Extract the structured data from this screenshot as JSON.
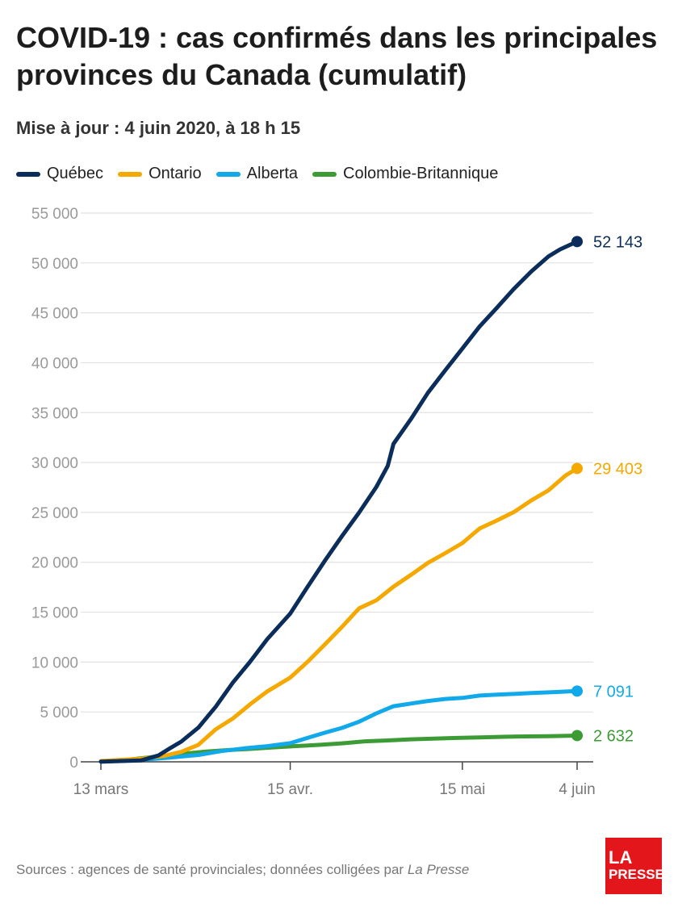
{
  "header": {
    "title": "COVID-19 : cas confirmés dans les principales provinces du Canada (cumulatif)",
    "subtitle": "Mise à jour : 4 juin 2020, à 18 h 15"
  },
  "footer": {
    "source_prefix": "Sources : agences de santé provinciales; données colligées par ",
    "source_publication": "La Presse"
  },
  "logo": {
    "line1": "LA",
    "line2": "PRESSE",
    "color": "#e3161b"
  },
  "chart_data": {
    "type": "line",
    "title": "COVID-19 : cas confirmés dans les principales provinces du Canada (cumulatif)",
    "subtitle": "Mise à jour : 4 juin 2020, à 18 h 15",
    "xlabel": "",
    "ylabel": "",
    "x_axis": {
      "type": "date",
      "range": [
        "2020-03-13",
        "2020-06-04"
      ],
      "ticks": [
        {
          "date": "2020-03-13",
          "label": "13 mars"
        },
        {
          "date": "2020-04-15",
          "label": "15 avr."
        },
        {
          "date": "2020-05-15",
          "label": "15 mai"
        },
        {
          "date": "2020-06-04",
          "label": "4 juin"
        }
      ]
    },
    "y_axis": {
      "range": [
        0,
        55000
      ],
      "ticks": [
        {
          "value": 0,
          "label": "0"
        },
        {
          "value": 5000,
          "label": "5 000"
        },
        {
          "value": 10000,
          "label": "10 000"
        },
        {
          "value": 15000,
          "label": "15 000"
        },
        {
          "value": 20000,
          "label": "20 000"
        },
        {
          "value": 25000,
          "label": "25 000"
        },
        {
          "value": 30000,
          "label": "30 000"
        },
        {
          "value": 35000,
          "label": "35 000"
        },
        {
          "value": 40000,
          "label": "40 000"
        },
        {
          "value": 45000,
          "label": "45 000"
        },
        {
          "value": 50000,
          "label": "50 000"
        },
        {
          "value": 55000,
          "label": "55 000"
        }
      ]
    },
    "grid": "horizontal",
    "legend": "top",
    "series": [
      {
        "name": "Québec",
        "color": "#0b2d5b",
        "end_label": "52 143",
        "points": [
          [
            "2020-03-13",
            17
          ],
          [
            "2020-03-20",
            139
          ],
          [
            "2020-03-23",
            628
          ],
          [
            "2020-03-25",
            1339
          ],
          [
            "2020-03-27",
            2021
          ],
          [
            "2020-03-30",
            3430
          ],
          [
            "2020-04-02",
            5518
          ],
          [
            "2020-04-05",
            7944
          ],
          [
            "2020-04-08",
            10031
          ],
          [
            "2020-04-11",
            12292
          ],
          [
            "2020-04-15",
            14860
          ],
          [
            "2020-04-18",
            17521
          ],
          [
            "2020-04-21",
            20126
          ],
          [
            "2020-04-24",
            22616
          ],
          [
            "2020-04-27",
            24982
          ],
          [
            "2020-04-30",
            27538
          ],
          [
            "2020-05-02",
            29656
          ],
          [
            "2020-05-03",
            31865
          ],
          [
            "2020-05-06",
            34327
          ],
          [
            "2020-05-09",
            36986
          ],
          [
            "2020-05-12",
            39225
          ],
          [
            "2020-05-15",
            41420
          ],
          [
            "2020-05-18",
            43627
          ],
          [
            "2020-05-21",
            45495
          ],
          [
            "2020-05-24",
            47411
          ],
          [
            "2020-05-27",
            49139
          ],
          [
            "2020-05-30",
            50651
          ],
          [
            "2020-06-01",
            51354
          ],
          [
            "2020-06-04",
            52143
          ]
        ]
      },
      {
        "name": "Ontario",
        "color": "#f5a800",
        "end_label": "29 403",
        "points": [
          [
            "2020-03-13",
            79
          ],
          [
            "2020-03-20",
            308
          ],
          [
            "2020-03-24",
            588
          ],
          [
            "2020-03-27",
            993
          ],
          [
            "2020-03-30",
            1706
          ],
          [
            "2020-04-02",
            3255
          ],
          [
            "2020-04-05",
            4347
          ],
          [
            "2020-04-08",
            5759
          ],
          [
            "2020-04-11",
            7049
          ],
          [
            "2020-04-15",
            8447
          ],
          [
            "2020-04-18",
            10010
          ],
          [
            "2020-04-21",
            11735
          ],
          [
            "2020-04-24",
            13519
          ],
          [
            "2020-04-27",
            15381
          ],
          [
            "2020-04-30",
            16187
          ],
          [
            "2020-05-03",
            17553
          ],
          [
            "2020-05-06",
            18722
          ],
          [
            "2020-05-09",
            19944
          ],
          [
            "2020-05-12",
            20907
          ],
          [
            "2020-05-15",
            21922
          ],
          [
            "2020-05-18",
            23384
          ],
          [
            "2020-05-21",
            24187
          ],
          [
            "2020-05-24",
            25040
          ],
          [
            "2020-05-27",
            26191
          ],
          [
            "2020-05-30",
            27210
          ],
          [
            "2020-06-02",
            28709
          ],
          [
            "2020-06-04",
            29403
          ]
        ]
      },
      {
        "name": "Alberta",
        "color": "#12a9ea",
        "end_label": "7 091",
        "points": [
          [
            "2020-03-13",
            23
          ],
          [
            "2020-03-20",
            195
          ],
          [
            "2020-03-25",
            419
          ],
          [
            "2020-03-30",
            690
          ],
          [
            "2020-04-03",
            1075
          ],
          [
            "2020-04-07",
            1348
          ],
          [
            "2020-04-11",
            1566
          ],
          [
            "2020-04-15",
            1870
          ],
          [
            "2020-04-18",
            2397
          ],
          [
            "2020-04-21",
            2908
          ],
          [
            "2020-04-24",
            3401
          ],
          [
            "2020-04-27",
            4017
          ],
          [
            "2020-04-30",
            4850
          ],
          [
            "2020-05-03",
            5573
          ],
          [
            "2020-05-06",
            5836
          ],
          [
            "2020-05-09",
            6098
          ],
          [
            "2020-05-12",
            6300
          ],
          [
            "2020-05-15",
            6407
          ],
          [
            "2020-05-18",
            6644
          ],
          [
            "2020-05-21",
            6735
          ],
          [
            "2020-05-24",
            6800
          ],
          [
            "2020-05-27",
            6900
          ],
          [
            "2020-05-31",
            6992
          ],
          [
            "2020-06-04",
            7091
          ]
        ]
      },
      {
        "name": "Colombie-Britannique",
        "color": "#3d9b35",
        "end_label": "2 632",
        "points": [
          [
            "2020-03-13",
            64
          ],
          [
            "2020-03-18",
            231
          ],
          [
            "2020-03-21",
            424
          ],
          [
            "2020-03-24",
            617
          ],
          [
            "2020-03-27",
            792
          ],
          [
            "2020-03-31",
            1013
          ],
          [
            "2020-04-04",
            1174
          ],
          [
            "2020-04-08",
            1291
          ],
          [
            "2020-04-12",
            1445
          ],
          [
            "2020-04-16",
            1575
          ],
          [
            "2020-04-20",
            1699
          ],
          [
            "2020-04-24",
            1853
          ],
          [
            "2020-04-28",
            2053
          ],
          [
            "2020-05-02",
            2145
          ],
          [
            "2020-05-06",
            2255
          ],
          [
            "2020-05-10",
            2330
          ],
          [
            "2020-05-14",
            2392
          ],
          [
            "2020-05-18",
            2446
          ],
          [
            "2020-05-22",
            2507
          ],
          [
            "2020-05-26",
            2550
          ],
          [
            "2020-05-30",
            2573
          ],
          [
            "2020-06-04",
            2632
          ]
        ]
      }
    ]
  }
}
